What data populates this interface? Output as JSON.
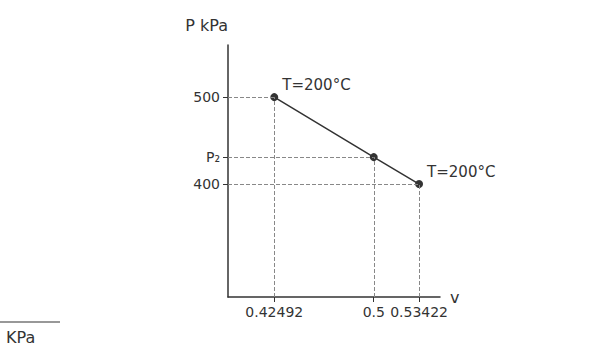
{
  "chart_data": {
    "type": "line",
    "ylabel": "P kPa",
    "xlabel": "v",
    "x": [
      0.42492,
      0.5,
      0.53422
    ],
    "values": [
      500,
      431,
      400
    ],
    "color": "#333333",
    "marker": "circle",
    "xlim": [
      0.39,
      0.55
    ],
    "xticks": [
      0.42492,
      0.5,
      0.53422
    ],
    "ylim": [
      270,
      560
    ],
    "yticks": [
      400,
      {
        "value": 431,
        "label": "P₂"
      },
      500
    ],
    "grid": false,
    "annotations": [
      {
        "text": "T=200°C",
        "x": 0.42492,
        "y": 500
      },
      {
        "text": "T=200°C",
        "x": 0.53422,
        "y": 400
      }
    ],
    "footnote": "KPa"
  }
}
